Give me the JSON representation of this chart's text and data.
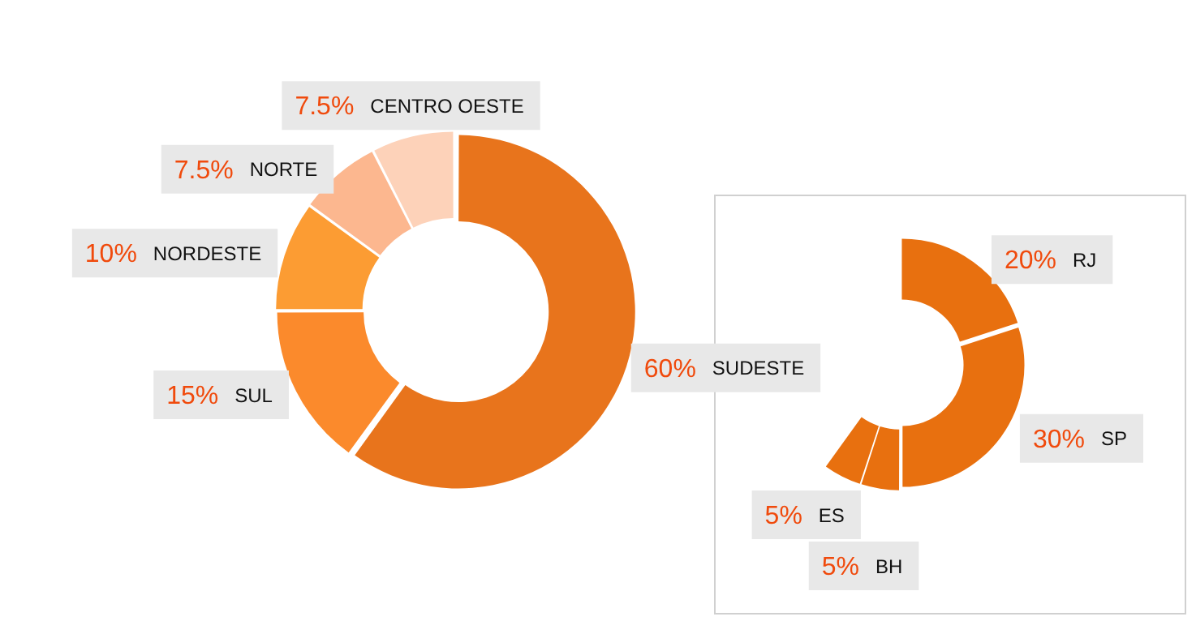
{
  "chart_data": [
    {
      "type": "donut",
      "categories": [
        "SUDESTE",
        "SUL",
        "NORDESTE",
        "NORTE",
        "CENTRO OESTE"
      ],
      "values": [
        60,
        15,
        10,
        7.5,
        7.5
      ],
      "colors": [
        "#e8741c",
        "#fb8a2c",
        "#fc9c33",
        "#fcb78f",
        "#fdd2b9"
      ],
      "value_labels": [
        "60%",
        "15%",
        "10%",
        "7.5%",
        "7.5%"
      ]
    },
    {
      "type": "donut",
      "categories": [
        "RJ",
        "SP",
        "BH",
        "ES"
      ],
      "values": [
        20,
        30,
        5,
        5
      ],
      "colors": [
        "#e8700f",
        "#e8700f",
        "#e8700f",
        "#e8700f"
      ],
      "value_labels": [
        "20%",
        "30%",
        "5%",
        "5%"
      ]
    }
  ]
}
